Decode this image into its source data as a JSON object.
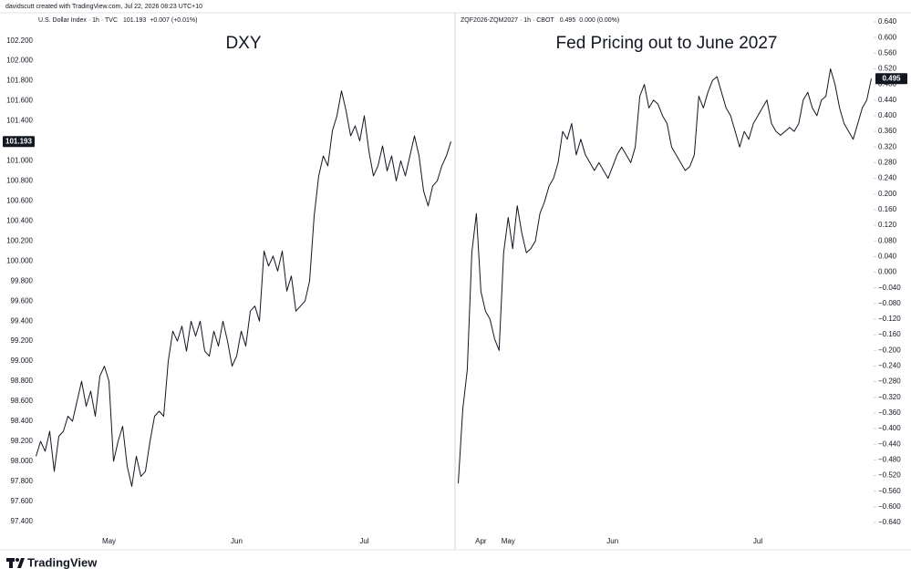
{
  "credit": "davidscutt created with TradingView.com, Jul 22, 2026 08:23 UTC+10",
  "brand": "TradingView",
  "chart_data": [
    {
      "type": "line",
      "title": "DXY",
      "symbol": "U.S. Dollar Index · 1h · TVC",
      "change": "+0.007 (+0.01%)",
      "axis_side": "left",
      "color": "#131722",
      "grid": false,
      "ylim": [
        97.28,
        102.47
      ],
      "yticks": [
        {
          "value": 97.4,
          "label": "97.400"
        },
        {
          "value": 97.6,
          "label": "97.600"
        },
        {
          "value": 97.8,
          "label": "97.800"
        },
        {
          "value": 98.0,
          "label": "98.000"
        },
        {
          "value": 98.2,
          "label": "98.200"
        },
        {
          "value": 98.4,
          "label": "98.400"
        },
        {
          "value": 98.6,
          "label": "98.600"
        },
        {
          "value": 98.8,
          "label": "98.800"
        },
        {
          "value": 99.0,
          "label": "99.000"
        },
        {
          "value": 99.2,
          "label": "99.200"
        },
        {
          "value": 99.4,
          "label": "99.400"
        },
        {
          "value": 99.6,
          "label": "99.600"
        },
        {
          "value": 99.8,
          "label": "99.800"
        },
        {
          "value": 100.0,
          "label": "100.000"
        },
        {
          "value": 100.2,
          "label": "100.200"
        },
        {
          "value": 100.4,
          "label": "100.400"
        },
        {
          "value": 100.6,
          "label": "100.600"
        },
        {
          "value": 100.8,
          "label": "100.800"
        },
        {
          "value": 101.0,
          "label": "101.000"
        },
        {
          "value": 101.2,
          "label": "101.200"
        },
        {
          "value": 101.4,
          "label": "101.400"
        },
        {
          "value": 101.6,
          "label": "101.600"
        },
        {
          "value": 101.8,
          "label": "101.800"
        },
        {
          "value": 102.0,
          "label": "102.000"
        },
        {
          "value": 102.2,
          "label": "102.200"
        }
      ],
      "categories": [
        null,
        null,
        null,
        null,
        null,
        null,
        null,
        null,
        null,
        null,
        null,
        null,
        null,
        null,
        null,
        null,
        "May",
        null,
        null,
        null,
        null,
        null,
        null,
        null,
        null,
        null,
        null,
        null,
        null,
        null,
        null,
        null,
        null,
        null,
        null,
        null,
        null,
        null,
        null,
        null,
        null,
        null,
        null,
        null,
        "Jun",
        null,
        null,
        null,
        null,
        null,
        null,
        null,
        null,
        null,
        null,
        null,
        null,
        null,
        null,
        null,
        null,
        null,
        null,
        null,
        null,
        null,
        null,
        null,
        null,
        null,
        null,
        null,
        "Jul",
        null,
        null,
        null,
        null,
        null,
        null,
        null,
        null,
        null,
        null,
        null,
        null,
        null,
        null,
        null,
        null,
        null,
        null,
        null
      ],
      "values": [
        98.05,
        98.2,
        98.1,
        98.3,
        97.9,
        98.25,
        98.3,
        98.45,
        98.4,
        98.6,
        98.8,
        98.55,
        98.7,
        98.45,
        98.85,
        98.95,
        98.8,
        98.0,
        98.2,
        98.35,
        97.95,
        97.75,
        98.05,
        97.85,
        97.9,
        98.2,
        98.45,
        98.5,
        98.45,
        99.0,
        99.3,
        99.2,
        99.35,
        99.1,
        99.4,
        99.25,
        99.4,
        99.1,
        99.05,
        99.3,
        99.15,
        99.4,
        99.2,
        98.95,
        99.05,
        99.3,
        99.15,
        99.5,
        99.55,
        99.4,
        100.1,
        99.95,
        100.05,
        99.9,
        100.1,
        99.7,
        99.85,
        99.5,
        99.55,
        99.6,
        99.8,
        100.45,
        100.85,
        101.05,
        100.95,
        101.3,
        101.45,
        101.7,
        101.5,
        101.25,
        101.35,
        101.2,
        101.45,
        101.1,
        100.85,
        100.95,
        101.15,
        100.9,
        101.05,
        100.8,
        101.0,
        100.85,
        101.05,
        101.25,
        101.05,
        100.7,
        100.55,
        100.75,
        100.8,
        100.95,
        101.05,
        101.193
      ]
    },
    {
      "type": "line",
      "title": "Fed Pricing out to June 2027",
      "symbol": "ZQF2026-ZQM2027 · 1h · CBOT",
      "change": "0.000 (0.00%)",
      "axis_side": "right",
      "color": "#131722",
      "grid": false,
      "ylim": [
        -0.668,
        0.661
      ],
      "yticks": [
        {
          "value": -0.64,
          "label": "−0.640"
        },
        {
          "value": -0.6,
          "label": "−0.600"
        },
        {
          "value": -0.56,
          "label": "−0.560"
        },
        {
          "value": -0.52,
          "label": "−0.520"
        },
        {
          "value": -0.48,
          "label": "−0.480"
        },
        {
          "value": -0.44,
          "label": "−0.440"
        },
        {
          "value": -0.4,
          "label": "−0.400"
        },
        {
          "value": -0.36,
          "label": "−0.360"
        },
        {
          "value": -0.32,
          "label": "−0.320"
        },
        {
          "value": -0.28,
          "label": "−0.280"
        },
        {
          "value": -0.24,
          "label": "−0.240"
        },
        {
          "value": -0.2,
          "label": "−0.200"
        },
        {
          "value": -0.16,
          "label": "−0.160"
        },
        {
          "value": -0.12,
          "label": "−0.120"
        },
        {
          "value": -0.08,
          "label": "−0.080"
        },
        {
          "value": -0.04,
          "label": "−0.040"
        },
        {
          "value": 0,
          "label": "0.000"
        },
        {
          "value": 0.04,
          "label": "0.040"
        },
        {
          "value": 0.08,
          "label": "0.080"
        },
        {
          "value": 0.12,
          "label": "0.120"
        },
        {
          "value": 0.16,
          "label": "0.160"
        },
        {
          "value": 0.2,
          "label": "0.200"
        },
        {
          "value": 0.24,
          "label": "0.240"
        },
        {
          "value": 0.28,
          "label": "0.280"
        },
        {
          "value": 0.32,
          "label": "0.320"
        },
        {
          "value": 0.36,
          "label": "0.360"
        },
        {
          "value": 0.4,
          "label": "0.400"
        },
        {
          "value": 0.44,
          "label": "0.440"
        },
        {
          "value": 0.48,
          "label": "0.480"
        },
        {
          "value": 0.52,
          "label": "0.520"
        },
        {
          "value": 0.56,
          "label": "0.560"
        },
        {
          "value": 0.6,
          "label": "0.600"
        },
        {
          "value": 0.64,
          "label": "0.640"
        }
      ],
      "categories": [
        null,
        null,
        null,
        null,
        null,
        "Apr",
        null,
        null,
        null,
        null,
        null,
        "May",
        null,
        null,
        null,
        null,
        null,
        null,
        null,
        null,
        null,
        null,
        null,
        null,
        null,
        null,
        null,
        null,
        null,
        null,
        null,
        null,
        null,
        null,
        "Jun",
        null,
        null,
        null,
        null,
        null,
        null,
        null,
        null,
        null,
        null,
        null,
        null,
        null,
        null,
        null,
        null,
        null,
        null,
        null,
        null,
        null,
        null,
        null,
        null,
        null,
        null,
        null,
        null,
        null,
        null,
        null,
        "Jul",
        null,
        null,
        null,
        null,
        null,
        null,
        null,
        null,
        null,
        null,
        null,
        null,
        null,
        null,
        null,
        null,
        null,
        null,
        null,
        null,
        null,
        null,
        null,
        null,
        null
      ],
      "values": [
        -0.54,
        -0.35,
        -0.25,
        0.05,
        0.15,
        -0.05,
        -0.1,
        -0.12,
        -0.17,
        -0.2,
        0.05,
        0.14,
        0.06,
        0.17,
        0.1,
        0.05,
        0.06,
        0.08,
        0.15,
        0.18,
        0.22,
        0.24,
        0.28,
        0.36,
        0.34,
        0.38,
        0.3,
        0.34,
        0.3,
        0.28,
        0.26,
        0.28,
        0.26,
        0.24,
        0.27,
        0.3,
        0.32,
        0.3,
        0.28,
        0.32,
        0.45,
        0.48,
        0.42,
        0.44,
        0.43,
        0.4,
        0.38,
        0.32,
        0.3,
        0.28,
        0.26,
        0.27,
        0.3,
        0.45,
        0.42,
        0.46,
        0.49,
        0.5,
        0.46,
        0.42,
        0.4,
        0.36,
        0.32,
        0.36,
        0.34,
        0.38,
        0.4,
        0.42,
        0.44,
        0.38,
        0.36,
        0.35,
        0.36,
        0.37,
        0.36,
        0.38,
        0.44,
        0.46,
        0.42,
        0.4,
        0.44,
        0.45,
        0.52,
        0.48,
        0.42,
        0.38,
        0.36,
        0.34,
        0.38,
        0.42,
        0.44,
        0.495
      ]
    }
  ]
}
